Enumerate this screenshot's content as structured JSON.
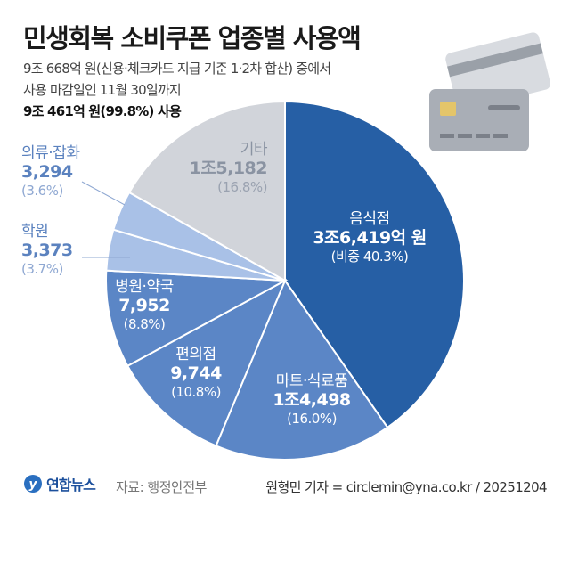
{
  "header": {
    "title": "민생회복 소비쿠폰 업종별 사용액",
    "subtitle_line1": "9조 668억 원(신용·체크카드 지급 기준 1·2차 합산) 중에서",
    "subtitle_line2": "사용 마감일인 11월 30일까지",
    "subtitle_line3": "9조 461억 원(99.8%) 사용"
  },
  "chart_data": {
    "type": "pie",
    "start": "top",
    "direction": "clockwise",
    "unit": "억 원",
    "slices": [
      {
        "name": "음식점",
        "value": 36419,
        "value_label": "3조6,419억 원",
        "pct_label": "(비중 40.3%)",
        "percent": 40.3,
        "color": "#265fa5"
      },
      {
        "name": "마트·식료품",
        "value": 14498,
        "value_label": "1조4,498",
        "pct_label": "(16.0%)",
        "percent": 16.0,
        "color": "#5b86c6"
      },
      {
        "name": "편의점",
        "value": 9744,
        "value_label": "9,744",
        "pct_label": "(10.8%)",
        "percent": 10.8,
        "color": "#5b86c6"
      },
      {
        "name": "병원·약국",
        "value": 7952,
        "value_label": "7,952",
        "pct_label": "(8.8%)",
        "percent": 8.8,
        "color": "#5b86c6"
      },
      {
        "name": "학원",
        "value": 3373,
        "value_label": "3,373",
        "pct_label": "(3.7%)",
        "percent": 3.7,
        "color": "#a9c1e7"
      },
      {
        "name": "의류·잡화",
        "value": 3294,
        "value_label": "3,294",
        "pct_label": "(3.6%)",
        "percent": 3.6,
        "color": "#a9c1e7"
      },
      {
        "name": "기타",
        "value": 15182,
        "value_label": "1조5,182",
        "pct_label": "(16.8%)",
        "percent": 16.8,
        "color": "#d1d4da"
      }
    ]
  },
  "footer": {
    "logo": "연합뉴스",
    "source": "자료: 행정안전부",
    "credit": "원형민 기자 = circlemin@yna.co.kr / 20251204"
  },
  "icons": {
    "decoration": "credit-card-icon"
  }
}
